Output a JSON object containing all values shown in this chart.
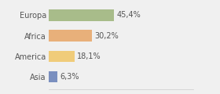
{
  "categories": [
    "Europa",
    "Africa",
    "America",
    "Asia"
  ],
  "values": [
    45.4,
    30.2,
    18.1,
    6.3
  ],
  "labels": [
    "45,4%",
    "30,2%",
    "18,1%",
    "6,3%"
  ],
  "bar_colors": [
    "#a8bc8a",
    "#e8b07a",
    "#f0cc7a",
    "#7a8fbf"
  ],
  "background_color": "#f0f0f0",
  "xlim": [
    0,
    100
  ],
  "bar_height": 0.55,
  "label_fontsize": 7.0,
  "category_fontsize": 7.0,
  "figsize": [
    2.8,
    1.2
  ],
  "dpi": 100
}
